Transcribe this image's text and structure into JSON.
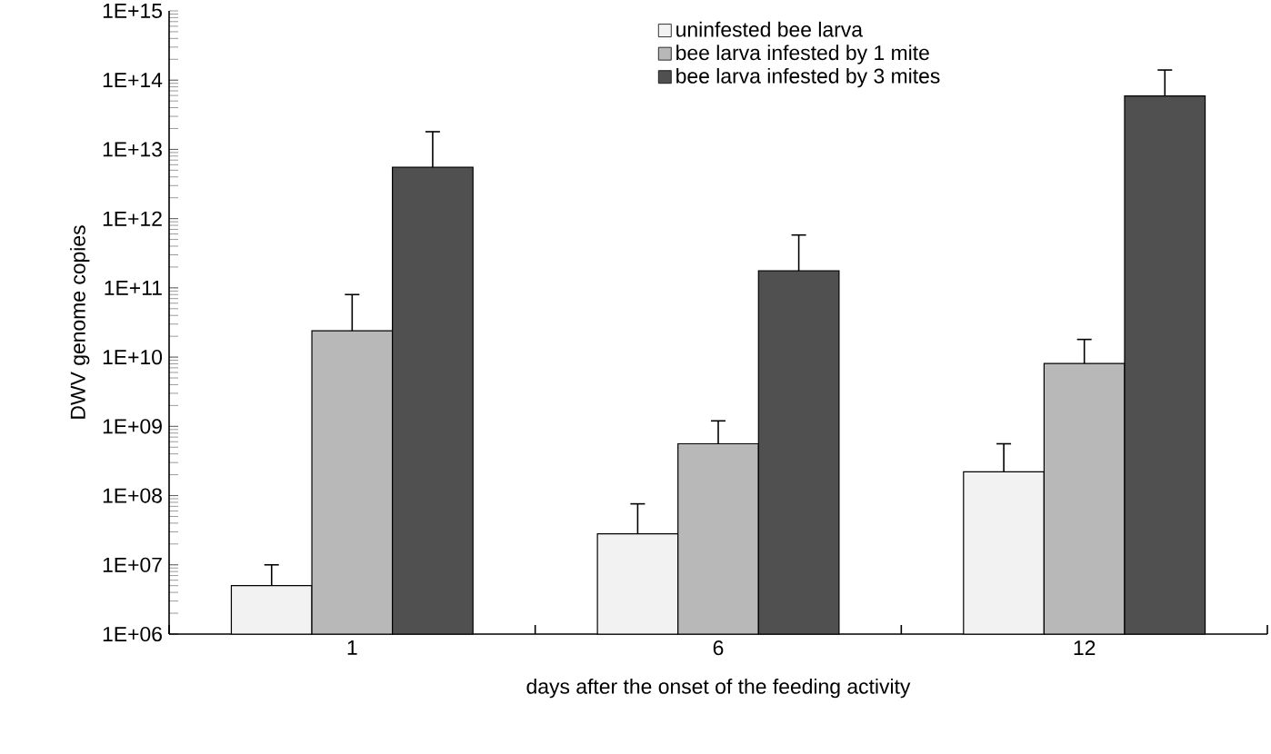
{
  "chart_data": {
    "type": "bar",
    "xlabel": "days after the onset of the feeding activity",
    "ylabel": "DWV genome copies",
    "categories": [
      "1",
      "6",
      "12"
    ],
    "series": [
      {
        "name": "uninfested bee larva",
        "color": "#f2f2f2",
        "values": [
          5000000.0,
          28000000.0,
          220000000.0
        ],
        "errors": [
          [
            5000000.0,
            10000000.0
          ],
          [
            28000000.0,
            76000000.0
          ],
          [
            220000000.0,
            560000000.0
          ]
        ]
      },
      {
        "name": "bee larva infested by 1 mite",
        "color": "#b8b8b8",
        "values": [
          24000000000.0,
          560000000.0,
          8100000000.0
        ],
        "errors": [
          [
            24000000000.0,
            80000000000.0
          ],
          [
            560000000.0,
            1200000000.0
          ],
          [
            8100000000.0,
            18000000000.0
          ]
        ]
      },
      {
        "name": "bee larva infested by 3 mites",
        "color": "#505050",
        "values": [
          5500000000000.0,
          176000000000.0,
          59000000000000.0
        ],
        "errors": [
          [
            5500000000000.0,
            18000000000000.0
          ],
          [
            176000000000.0,
            580000000000.0
          ],
          [
            59000000000000.0,
            140000000000000.0
          ]
        ]
      }
    ],
    "log": true,
    "ylim": [
      1000000.0,
      1000000000000000.0
    ],
    "yticks": [
      {
        "value": 1000000.0,
        "label": "1E+06"
      },
      {
        "value": 10000000.0,
        "label": "1E+07"
      },
      {
        "value": 100000000.0,
        "label": "1E+08"
      },
      {
        "value": 1000000000.0,
        "label": "1E+09"
      },
      {
        "value": 10000000000.0,
        "label": "1E+10"
      },
      {
        "value": 100000000000.0,
        "label": "1E+11"
      },
      {
        "value": 1000000000000.0,
        "label": "1E+12"
      },
      {
        "value": 10000000000000.0,
        "label": "1E+13"
      },
      {
        "value": 100000000000000.0,
        "label": "1E+14"
      },
      {
        "value": 1000000000000000.0,
        "label": "1E+15"
      }
    ],
    "legend": "top right",
    "grid": false
  }
}
